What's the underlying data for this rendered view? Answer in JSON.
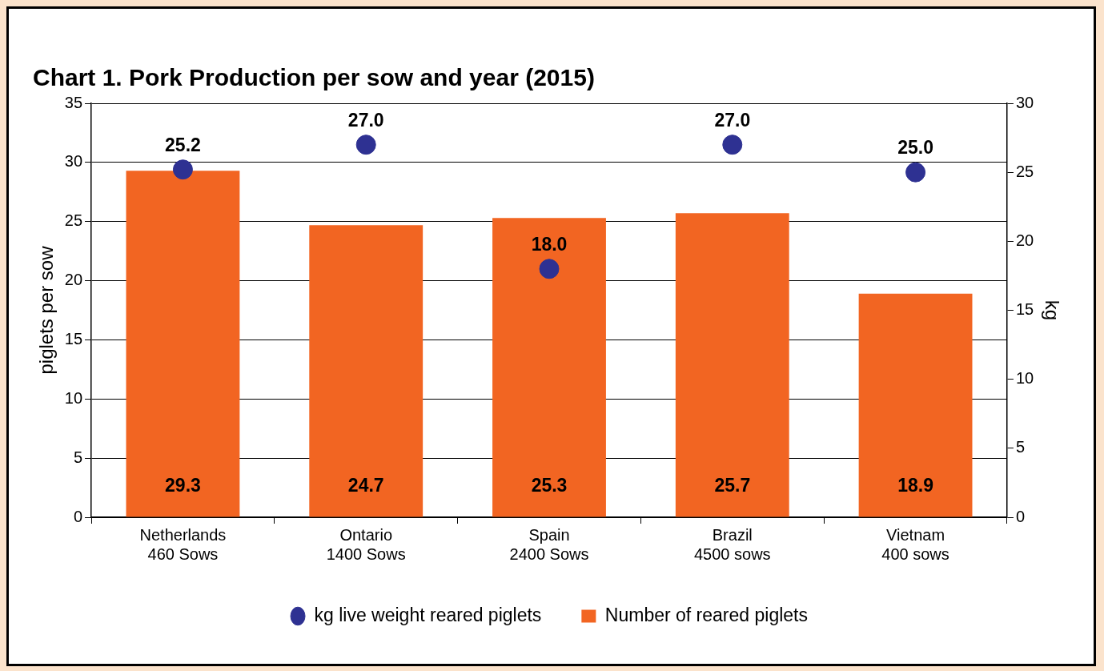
{
  "chart_data": {
    "type": "bar",
    "title": "Chart 1. Pork Production per sow and year (2015)",
    "ylabel": "piglets per sow",
    "y2label": "kg",
    "categories": [
      "Netherlands\n460 Sows",
      "Ontario\n1400 Sows",
      "Spain\n2400 Sows",
      "Brazil\n4500 sows",
      "Vietnam\n400 sows"
    ],
    "series": [
      {
        "name": "Number of reared piglets",
        "color": "#f26522",
        "values": [
          29.3,
          24.7,
          25.3,
          25.7,
          18.9
        ],
        "value_labels": [
          "29.3",
          "24.7",
          "25.3",
          "25.7",
          "18.9"
        ]
      },
      {
        "name": "kg live weight reared piglets",
        "type": "scatter",
        "axis": "y2",
        "color": "#2e3192",
        "values": [
          25.2,
          27.0,
          18.0,
          27.0,
          25.0
        ],
        "value_labels": [
          "25.2",
          "27.0",
          "18.0",
          "27.0",
          "25.0"
        ]
      }
    ],
    "ylim": [
      0,
      35
    ],
    "yticks": [
      0,
      5,
      10,
      15,
      20,
      25,
      30,
      35
    ],
    "y2lim": [
      0,
      30
    ],
    "y2ticks": [
      0,
      5,
      10,
      15,
      20,
      25,
      30
    ],
    "grid": "y",
    "legend": "bottom",
    "marker": "circle"
  }
}
